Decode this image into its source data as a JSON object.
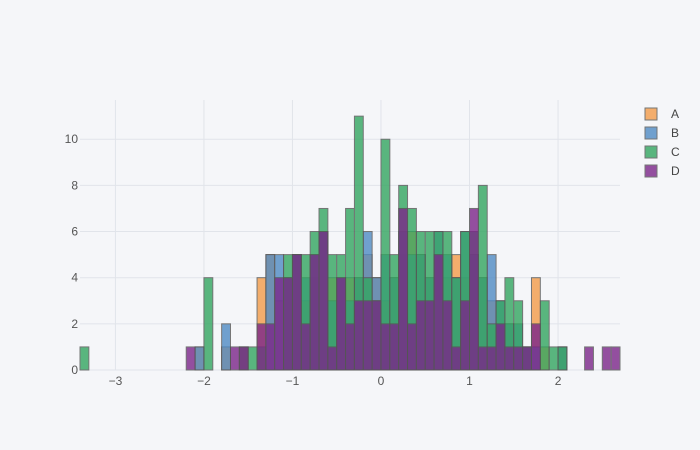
{
  "colors": {
    "background": "#f5f6f9",
    "grid": "#e1e4ea",
    "bar_outline": "#555555"
  },
  "chart_data": {
    "type": "bar",
    "subtype": "overlaid-histogram",
    "title": "",
    "xlabel": "",
    "ylabel": "",
    "xlim": [
      -3.4,
      2.7
    ],
    "ylim": [
      0,
      11.7
    ],
    "bin_width": 0.1,
    "xticks": [
      -3,
      -2,
      -1,
      0,
      1,
      2
    ],
    "xtick_labels": [
      "−3",
      "−2",
      "−1",
      "0",
      "1",
      "2"
    ],
    "yticks": [
      0,
      2,
      4,
      6,
      8,
      10
    ],
    "ytick_labels": [
      "0",
      "2",
      "4",
      "6",
      "8",
      "10"
    ],
    "grid": true,
    "legend_position": "top-right",
    "series": [
      {
        "name": "A",
        "color": "#f39c4a",
        "bins": [
          {
            "x": -2.1,
            "y": 1
          },
          {
            "x": -1.8,
            "y": 1
          },
          {
            "x": -1.6,
            "y": 1
          },
          {
            "x": -1.4,
            "y": 4
          },
          {
            "x": -1.3,
            "y": 5
          },
          {
            "x": -1.2,
            "y": 3
          },
          {
            "x": -1.1,
            "y": 4
          },
          {
            "x": -1.0,
            "y": 5
          },
          {
            "x": -0.9,
            "y": 3
          },
          {
            "x": -0.8,
            "y": 4
          },
          {
            "x": -0.7,
            "y": 6
          },
          {
            "x": -0.6,
            "y": 4
          },
          {
            "x": -0.5,
            "y": 3
          },
          {
            "x": -0.4,
            "y": 4
          },
          {
            "x": -0.3,
            "y": 4
          },
          {
            "x": -0.2,
            "y": 5
          },
          {
            "x": -0.1,
            "y": 4
          },
          {
            "x": 0.0,
            "y": 3
          },
          {
            "x": 0.1,
            "y": 4
          },
          {
            "x": 0.2,
            "y": 5
          },
          {
            "x": 0.3,
            "y": 6
          },
          {
            "x": 0.4,
            "y": 5
          },
          {
            "x": 0.5,
            "y": 4
          },
          {
            "x": 0.6,
            "y": 5
          },
          {
            "x": 0.7,
            "y": 4
          },
          {
            "x": 0.8,
            "y": 5
          },
          {
            "x": 0.9,
            "y": 4
          },
          {
            "x": 1.0,
            "y": 5
          },
          {
            "x": 1.1,
            "y": 4
          },
          {
            "x": 1.2,
            "y": 3
          },
          {
            "x": 1.3,
            "y": 2
          },
          {
            "x": 1.4,
            "y": 2
          },
          {
            "x": 1.5,
            "y": 1
          },
          {
            "x": 1.6,
            "y": 1
          },
          {
            "x": 1.7,
            "y": 4
          },
          {
            "x": 1.8,
            "y": 1
          },
          {
            "x": 2.0,
            "y": 1
          }
        ]
      },
      {
        "name": "B",
        "color": "#4f8bc4",
        "bins": [
          {
            "x": -2.1,
            "y": 1
          },
          {
            "x": -1.8,
            "y": 2
          },
          {
            "x": -1.3,
            "y": 5
          },
          {
            "x": -1.2,
            "y": 5
          },
          {
            "x": -1.1,
            "y": 4
          },
          {
            "x": -1.0,
            "y": 5
          },
          {
            "x": -0.9,
            "y": 4
          },
          {
            "x": -0.8,
            "y": 5
          },
          {
            "x": -0.7,
            "y": 6
          },
          {
            "x": -0.6,
            "y": 3
          },
          {
            "x": -0.5,
            "y": 4
          },
          {
            "x": -0.4,
            "y": 3
          },
          {
            "x": -0.3,
            "y": 4
          },
          {
            "x": -0.2,
            "y": 6
          },
          {
            "x": -0.1,
            "y": 4
          },
          {
            "x": 0.0,
            "y": 5
          },
          {
            "x": 0.1,
            "y": 4
          },
          {
            "x": 0.2,
            "y": 6
          },
          {
            "x": 0.3,
            "y": 5
          },
          {
            "x": 0.4,
            "y": 5
          },
          {
            "x": 0.5,
            "y": 4
          },
          {
            "x": 0.6,
            "y": 6
          },
          {
            "x": 0.7,
            "y": 5
          },
          {
            "x": 0.8,
            "y": 4
          },
          {
            "x": 0.9,
            "y": 6
          },
          {
            "x": 1.0,
            "y": 5
          },
          {
            "x": 1.1,
            "y": 4
          },
          {
            "x": 1.2,
            "y": 5
          },
          {
            "x": 1.3,
            "y": 3
          },
          {
            "x": 1.4,
            "y": 2
          },
          {
            "x": 1.5,
            "y": 2
          },
          {
            "x": 1.6,
            "y": 1
          },
          {
            "x": 1.7,
            "y": 1
          },
          {
            "x": 2.0,
            "y": 1
          }
        ]
      },
      {
        "name": "C",
        "color": "#33a660",
        "bins": [
          {
            "x": -3.4,
            "y": 1
          },
          {
            "x": -2.0,
            "y": 4
          },
          {
            "x": -1.6,
            "y": 1
          },
          {
            "x": -1.5,
            "y": 1
          },
          {
            "x": -1.4,
            "y": 1
          },
          {
            "x": -1.1,
            "y": 5
          },
          {
            "x": -1.0,
            "y": 5
          },
          {
            "x": -0.9,
            "y": 5
          },
          {
            "x": -0.8,
            "y": 6
          },
          {
            "x": -0.7,
            "y": 7
          },
          {
            "x": -0.6,
            "y": 5
          },
          {
            "x": -0.5,
            "y": 5
          },
          {
            "x": -0.4,
            "y": 7
          },
          {
            "x": -0.3,
            "y": 11
          },
          {
            "x": -0.2,
            "y": 4
          },
          {
            "x": -0.1,
            "y": 3
          },
          {
            "x": 0.0,
            "y": 10
          },
          {
            "x": 0.1,
            "y": 5
          },
          {
            "x": 0.2,
            "y": 8
          },
          {
            "x": 0.3,
            "y": 7
          },
          {
            "x": 0.4,
            "y": 6
          },
          {
            "x": 0.5,
            "y": 6
          },
          {
            "x": 0.6,
            "y": 6
          },
          {
            "x": 0.7,
            "y": 6
          },
          {
            "x": 0.8,
            "y": 4
          },
          {
            "x": 0.9,
            "y": 6
          },
          {
            "x": 1.0,
            "y": 6
          },
          {
            "x": 1.1,
            "y": 8
          },
          {
            "x": 1.2,
            "y": 2
          },
          {
            "x": 1.3,
            "y": 3
          },
          {
            "x": 1.4,
            "y": 4
          },
          {
            "x": 1.5,
            "y": 3
          },
          {
            "x": 1.6,
            "y": 1
          },
          {
            "x": 1.8,
            "y": 3
          },
          {
            "x": 1.9,
            "y": 1
          },
          {
            "x": 2.0,
            "y": 1
          }
        ]
      },
      {
        "name": "D",
        "color": "#7b2689",
        "bins": [
          {
            "x": -2.2,
            "y": 1
          },
          {
            "x": -1.7,
            "y": 1
          },
          {
            "x": -1.6,
            "y": 1
          },
          {
            "x": -1.4,
            "y": 2
          },
          {
            "x": -1.3,
            "y": 2
          },
          {
            "x": -1.2,
            "y": 4
          },
          {
            "x": -1.1,
            "y": 4
          },
          {
            "x": -1.0,
            "y": 5
          },
          {
            "x": -0.9,
            "y": 2
          },
          {
            "x": -0.8,
            "y": 5
          },
          {
            "x": -0.7,
            "y": 6
          },
          {
            "x": -0.6,
            "y": 1
          },
          {
            "x": -0.5,
            "y": 4
          },
          {
            "x": -0.4,
            "y": 2
          },
          {
            "x": -0.3,
            "y": 3
          },
          {
            "x": -0.2,
            "y": 3
          },
          {
            "x": -0.1,
            "y": 3
          },
          {
            "x": 0.0,
            "y": 2
          },
          {
            "x": 0.1,
            "y": 2
          },
          {
            "x": 0.2,
            "y": 7
          },
          {
            "x": 0.3,
            "y": 2
          },
          {
            "x": 0.4,
            "y": 3
          },
          {
            "x": 0.5,
            "y": 3
          },
          {
            "x": 0.6,
            "y": 5
          },
          {
            "x": 0.7,
            "y": 3
          },
          {
            "x": 0.8,
            "y": 1
          },
          {
            "x": 0.9,
            "y": 3
          },
          {
            "x": 1.0,
            "y": 7
          },
          {
            "x": 1.1,
            "y": 1
          },
          {
            "x": 1.2,
            "y": 1
          },
          {
            "x": 1.3,
            "y": 2
          },
          {
            "x": 1.4,
            "y": 1
          },
          {
            "x": 1.5,
            "y": 1
          },
          {
            "x": 1.6,
            "y": 1
          },
          {
            "x": 1.7,
            "y": 2
          },
          {
            "x": 2.3,
            "y": 1
          },
          {
            "x": 2.5,
            "y": 1
          },
          {
            "x": 2.6,
            "y": 1
          }
        ]
      }
    ]
  }
}
